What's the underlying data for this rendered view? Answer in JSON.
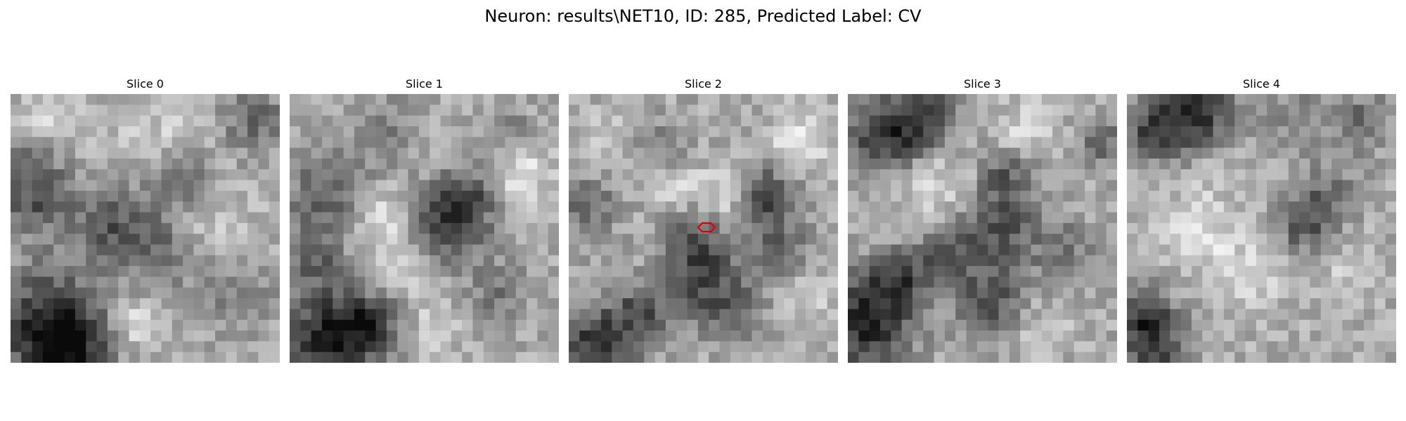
{
  "figure": {
    "title": "Neuron: results\\NET10, ID: 285, Predicted Label: CV"
  },
  "panels": [
    {
      "title": "Slice 0",
      "has_marker": false
    },
    {
      "title": "Slice 1",
      "has_marker": false
    },
    {
      "title": "Slice 2",
      "has_marker": true,
      "marker_shape": "hexagon",
      "marker_color": "#e00000"
    },
    {
      "title": "Slice 3",
      "has_marker": false
    },
    {
      "title": "Slice 4",
      "has_marker": false
    }
  ],
  "colors": {
    "background": "#ffffff",
    "text": "#000000",
    "marker": "#e00000"
  }
}
